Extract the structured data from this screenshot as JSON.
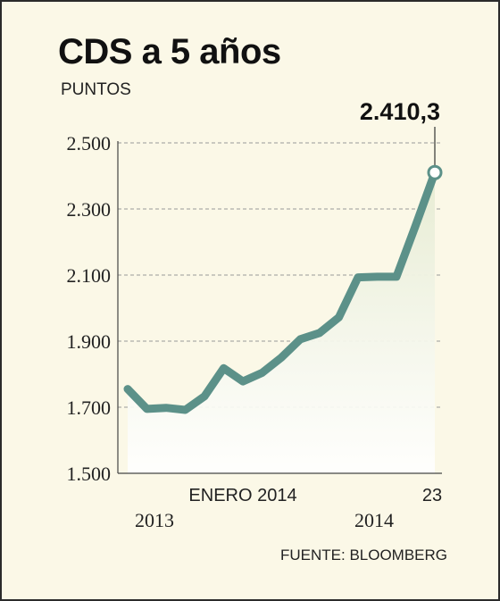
{
  "header": {
    "title": "CDS a 5 años",
    "units": "PUNTOS"
  },
  "footer": {
    "source": "FUENTE: BLOOMBERG"
  },
  "colors": {
    "line": "#5c9189",
    "area": "#e7ecd3",
    "background": "#fbf8e7",
    "grid": "#9a9a9a"
  },
  "chart_data": {
    "type": "area",
    "title": "CDS a 5 años",
    "ylabel": "PUNTOS",
    "ylim": [
      1500,
      2500
    ],
    "y_ticks": [
      {
        "value": 1500,
        "label": "1.500"
      },
      {
        "value": 1700,
        "label": "1.700"
      },
      {
        "value": 1900,
        "label": "1.900"
      },
      {
        "value": 2100,
        "label": "2.100"
      },
      {
        "value": 2300,
        "label": "2.300"
      },
      {
        "value": 2500,
        "label": "2.500"
      }
    ],
    "x_labels": {
      "period_mid": "ENERO 2014",
      "last_day": "23",
      "year_start": "2013",
      "year_end": "2014"
    },
    "grid": true,
    "series": [
      {
        "values": [
          1755,
          1695,
          1698,
          1692,
          1733,
          1818,
          1778,
          1804,
          1850,
          1906,
          1925,
          1972,
          2093,
          2095,
          2095,
          2250,
          2410.3
        ]
      }
    ],
    "last_value": 2410.3,
    "last_value_label": "2.410,3"
  }
}
